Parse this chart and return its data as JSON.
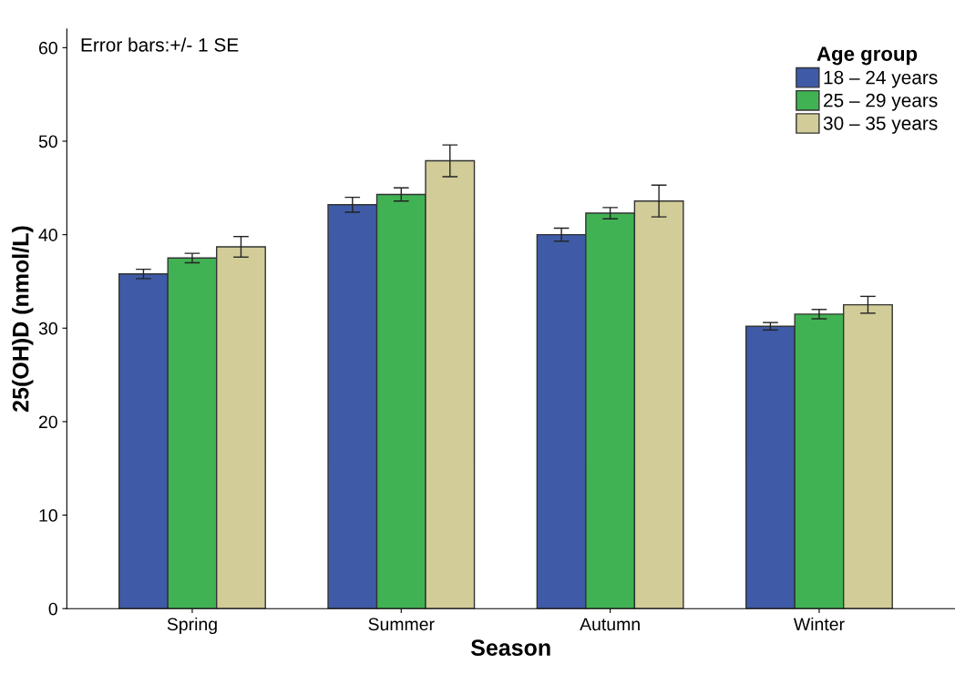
{
  "chart_data": {
    "type": "bar",
    "xlabel": "Season",
    "ylabel": "25(OH)D (nmol/L)",
    "categories": [
      "Spring",
      "Summer",
      "Autumn",
      "Winter"
    ],
    "series": [
      {
        "name": "18 – 24 years",
        "color": "#3f5ba7",
        "values": [
          35.8,
          43.2,
          40.0,
          30.2
        ],
        "errors": [
          0.5,
          0.8,
          0.7,
          0.4
        ]
      },
      {
        "name": "25 – 29 years",
        "color": "#41b253",
        "values": [
          37.5,
          44.3,
          42.3,
          31.5
        ],
        "errors": [
          0.5,
          0.7,
          0.6,
          0.5
        ]
      },
      {
        "name": "30 – 35 years",
        "color": "#d2cd98",
        "values": [
          38.7,
          47.9,
          43.6,
          32.5
        ],
        "errors": [
          1.1,
          1.7,
          1.7,
          0.9
        ]
      }
    ],
    "ylim": [
      0,
      62
    ],
    "yticks": [
      0,
      10,
      20,
      30,
      40,
      50,
      60
    ],
    "grid": false,
    "legend": "top right",
    "legend_title": "Age group",
    "annotations": [
      "Error bars:+/- 1 SE"
    ]
  }
}
